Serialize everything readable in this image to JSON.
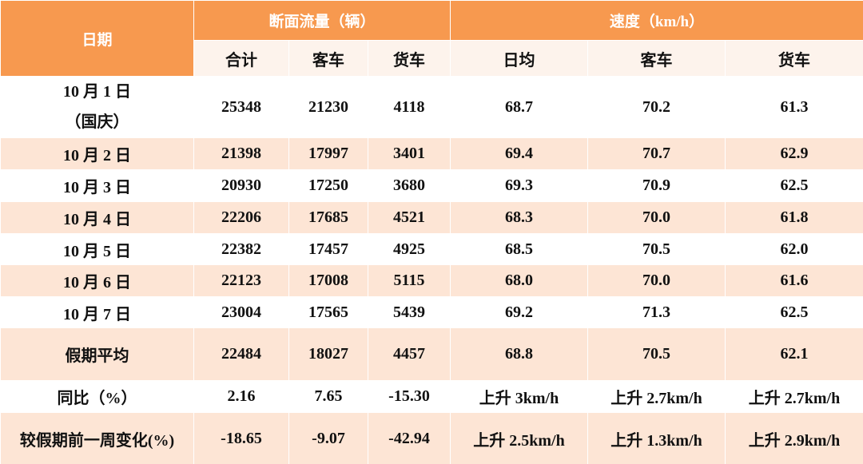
{
  "header": {
    "date": "日期",
    "flow": "断面流量（辆）",
    "speed": "速度（km/h）",
    "flow_cols": [
      "合计",
      "客车",
      "货车"
    ],
    "speed_cols": [
      "日均",
      "客车",
      "货车"
    ]
  },
  "table": {
    "rows": [
      [
        [
          "10 月 1 日",
          "（国庆）"
        ],
        "25348",
        "21230",
        "4118",
        "68.7",
        "70.2",
        "61.3"
      ],
      [
        "10 月 2 日",
        "21398",
        "17997",
        "3401",
        "69.4",
        "70.7",
        "62.9"
      ],
      [
        "10 月 3 日",
        "20930",
        "17250",
        "3680",
        "69.3",
        "70.9",
        "62.5"
      ],
      [
        "10 月 4 日",
        "22206",
        "17685",
        "4521",
        "68.3",
        "70.0",
        "61.8"
      ],
      [
        "10 月 5 日",
        "22382",
        "17457",
        "4925",
        "68.5",
        "70.5",
        "62.0"
      ],
      [
        "10 月 6 日",
        "22123",
        "17008",
        "5115",
        "68.0",
        "70.0",
        "61.6"
      ],
      [
        "10 月 7 日",
        "23004",
        "17565",
        "5439",
        "69.2",
        "71.3",
        "62.5"
      ],
      [
        "假期平均",
        "22484",
        "18027",
        "4457",
        "68.8",
        "70.5",
        "62.1"
      ],
      [
        "同比（%）",
        "2.16",
        "7.65",
        "-15.30",
        "上升 3km/h",
        "上升 2.7km/h",
        "上升 2.7km/h"
      ],
      [
        "较假期前一周变化(%)",
        "-18.65",
        "-9.07",
        "-42.94",
        "上升 2.5km/h",
        "上升 1.3km/h",
        "上升 2.9km/h"
      ]
    ]
  }
}
